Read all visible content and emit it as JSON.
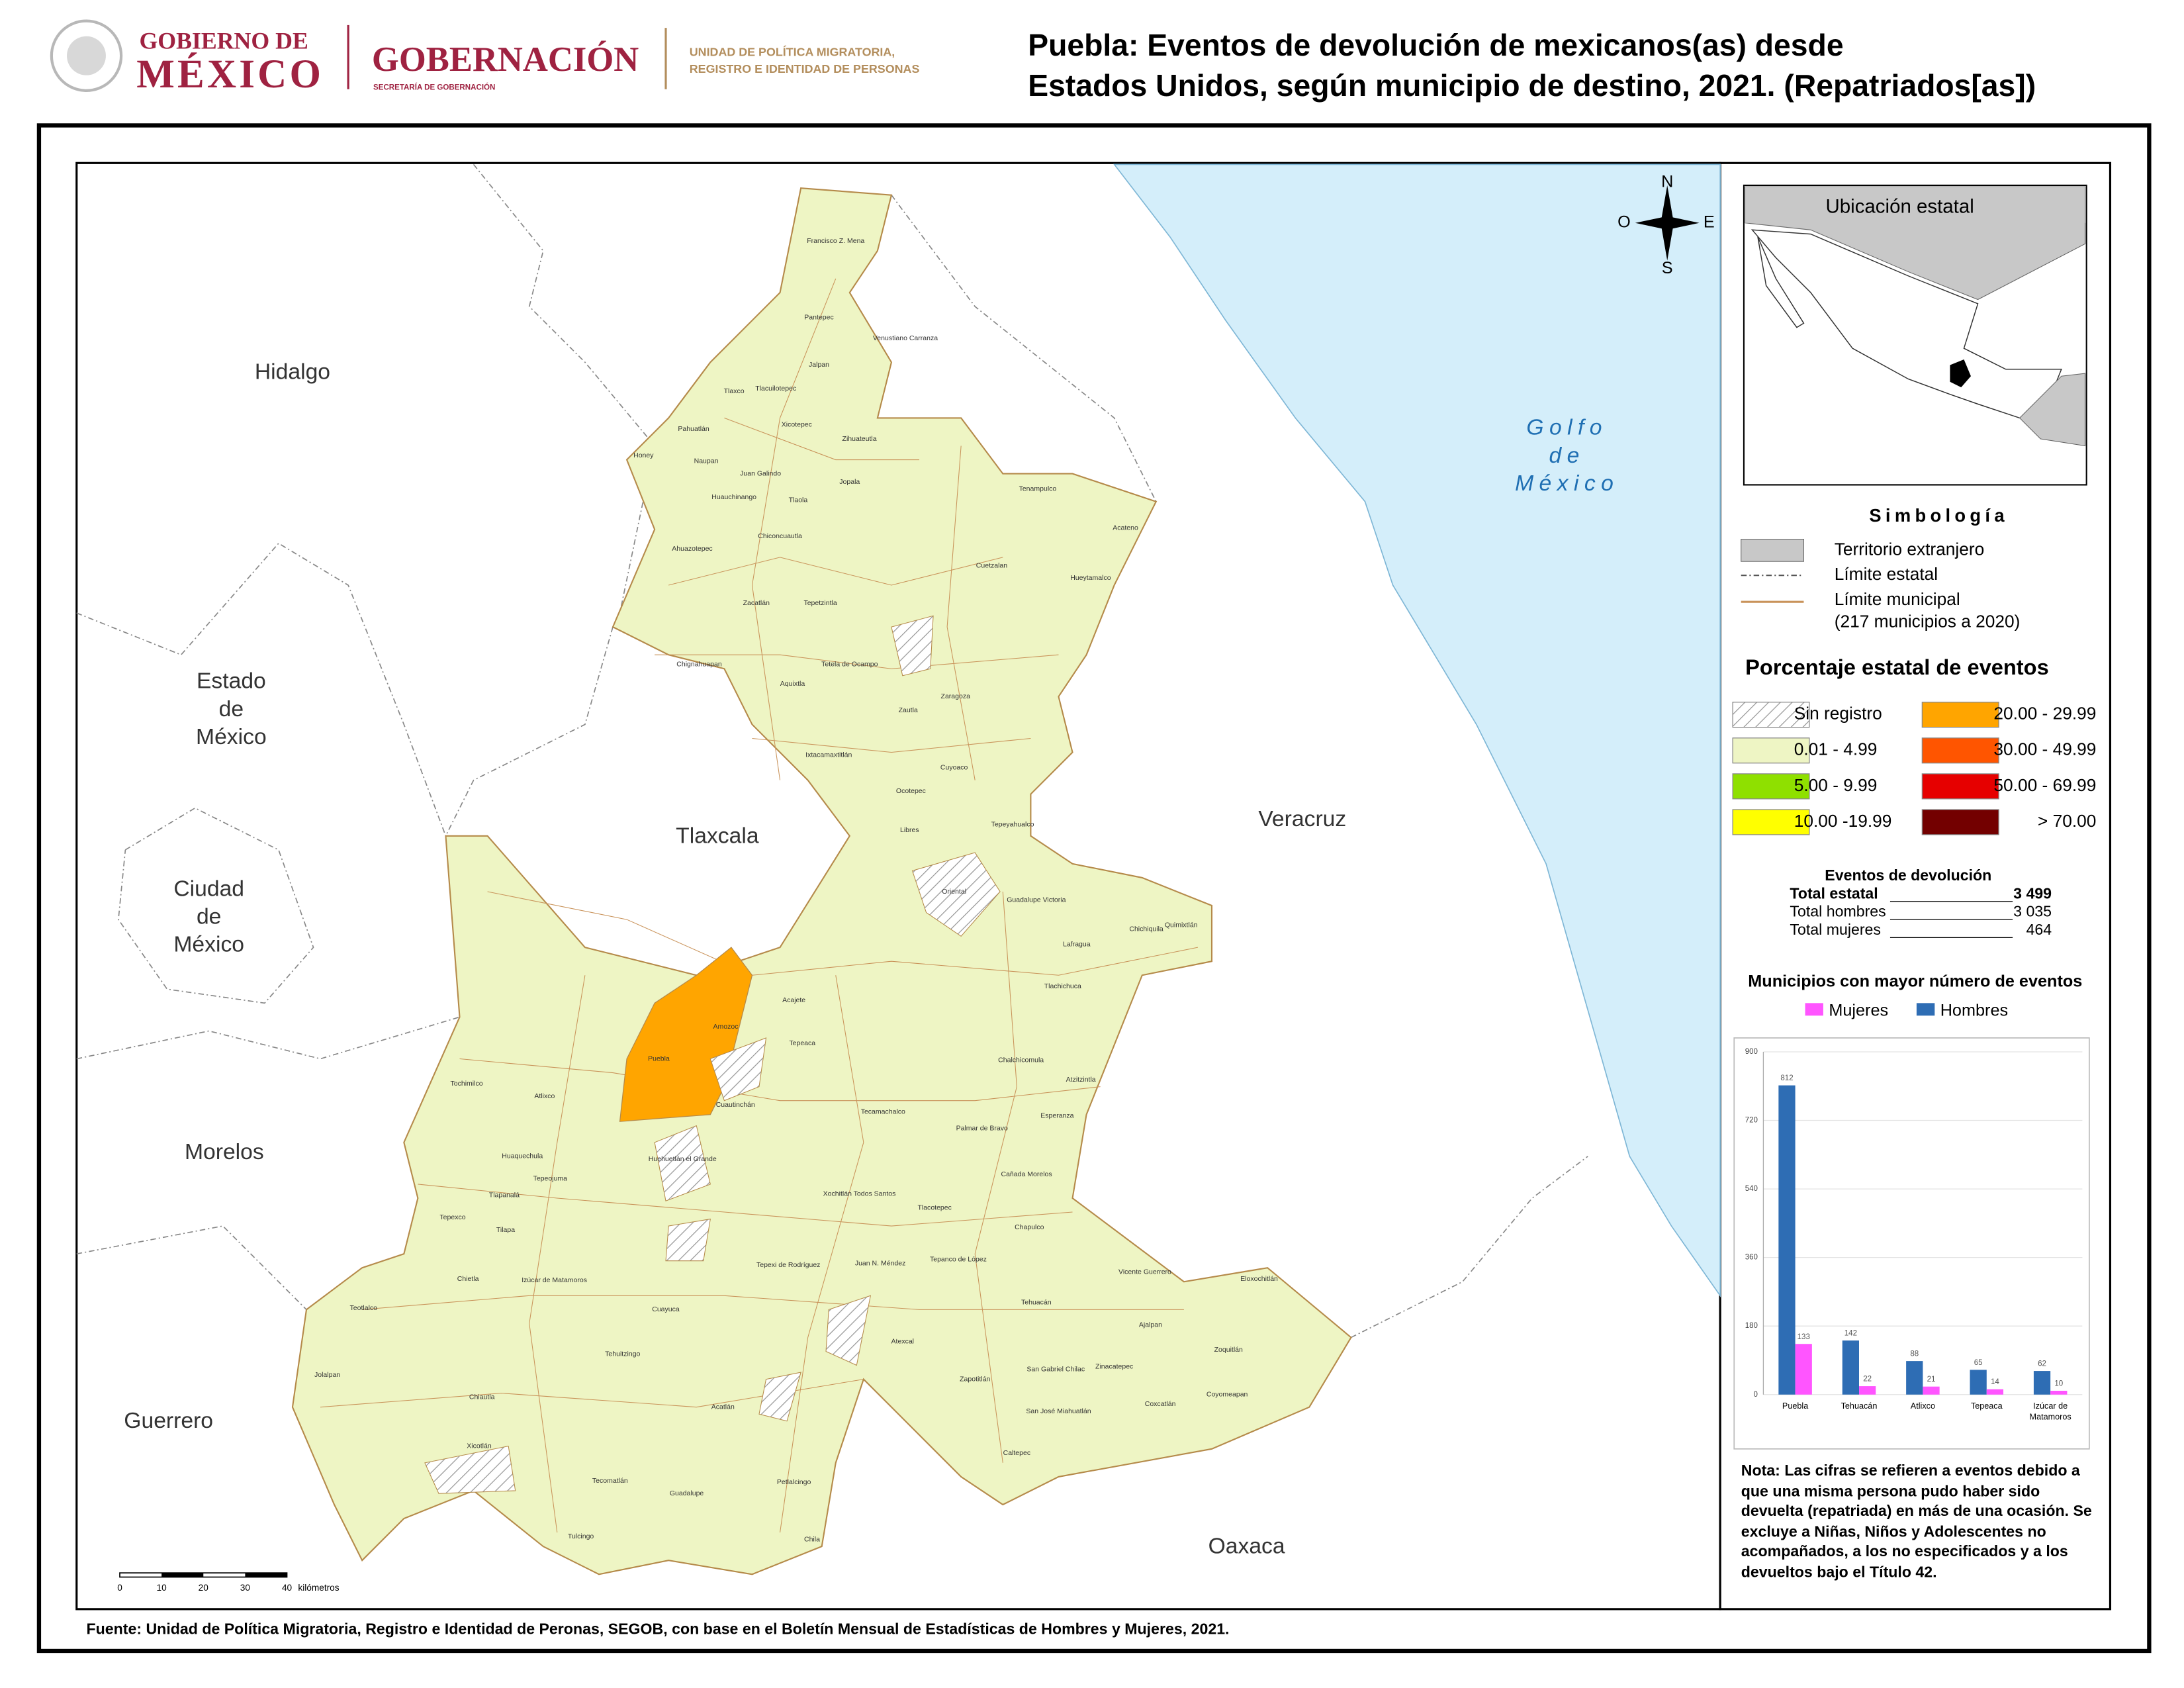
{
  "header": {
    "gov_line1": "GOBIERNO DE",
    "gov_line2": "MÉXICO",
    "ministry": "GOBERNACIÓN",
    "ministry_sub": "SECRETARÍA DE GOBERNACIÓN",
    "unit_line1": "UNIDAD DE POLÍTICA MIGRATORIA,",
    "unit_line2": "REGISTRO E IDENTIDAD DE PERSONAS",
    "title_line1": "Puebla: Eventos de devolución de mexicanos(as) desde",
    "title_line2": "Estados Unidos, según municipio de destino, 2021. (Repatriados[as])"
  },
  "map": {
    "neighbors": [
      "Hidalgo",
      "Estado de México",
      "Ciudad de México",
      "Morelos",
      "Guerrero",
      "Tlaxcala",
      "Veracruz",
      "Oaxaca"
    ],
    "sea": "Golfo de México",
    "compass": {
      "n": "N",
      "o": "O",
      "e": "E",
      "s": "S"
    },
    "scale": {
      "ticks": [
        0,
        10,
        20,
        30,
        40
      ],
      "unit": "kilómetros"
    },
    "municipalities": [
      "Francisco Z. Mena",
      "Pantepec",
      "Venustiano Carranza",
      "Jalpan",
      "Tlaxco",
      "Tlacuilotepec",
      "Xicotepec",
      "Pahuatlán",
      "Zihuateutla",
      "Honey",
      "Naupan",
      "Juan Galindo",
      "Jopala",
      "Huauchinango",
      "Tlaola",
      "Chiconcuautla",
      "Tenampulco",
      "Acateno",
      "Ahuazotepec",
      "Cuetzalan",
      "Hueytamalco",
      "Zacatlán",
      "Tepetzintla",
      "Chignahuapan",
      "Aquixtla",
      "Tetela de Ocampo",
      "Zaragoza",
      "Zautla",
      "Ixtacamaxtitlán",
      "Cuyoaco",
      "Ocotepec",
      "Libres",
      "Tepeyahualco",
      "Oriental",
      "Guadalupe Victoria",
      "Chichiquila",
      "Quimixtlán",
      "Lafragua",
      "Tlachichuca",
      "Chalchicomula",
      "Atzitzintla",
      "Esperanza",
      "Palmar de Bravo",
      "Tecamachalco",
      "Tepeaca",
      "Acajete",
      "Amozoc",
      "Puebla",
      "Cuautinchán",
      "Tochimilco",
      "Atlixco",
      "Huaquechula",
      "Tepeojuma",
      "Tlapanalá",
      "Tepexco",
      "Tilapa",
      "Chietla",
      "Izúcar de Matamoros",
      "Teotlalco",
      "Jolalpan",
      "Chiautla",
      "Tehuitzingo",
      "Cuayuca",
      "Tehuacán",
      "Ajalpan",
      "Zoquitlán",
      "Coyomeapan",
      "Eloxochitlán",
      "Vicente Guerrero",
      "Acatlán",
      "Tecomatlán",
      "Xicotlán",
      "Guadalupe",
      "Tulcingo",
      "Chila",
      "Petlalcingo",
      "Caltepec",
      "Zapotitlán",
      "Atexcal",
      "Tepanco de López",
      "Chapulco",
      "Cañada Morelos",
      "Tlacotepec",
      "Xochitlán Todos Santos",
      "Huehuetlán el Grande",
      "Tepexi de Rodríguez",
      "Juan N. Méndez",
      "Zinacatepec",
      "Coxcatlán",
      "San José Miahuatlán",
      "San Gabriel Chilac"
    ]
  },
  "inset": {
    "title": "Ubicación estatal"
  },
  "legend": {
    "title": "Simbología",
    "items": [
      {
        "label": "Territorio extranjero"
      },
      {
        "label": "Límite estatal"
      },
      {
        "label": "Límite municipal",
        "note": "(217 municipios a 2020)"
      }
    ],
    "classes_title": "Porcentaje estatal de eventos",
    "classes": [
      {
        "label": "Sin registro",
        "fill": "hatch"
      },
      {
        "label": "0.01  - 4.99",
        "fill": "#eef5c4"
      },
      {
        "label": "5.00  - 9.99",
        "fill": "#8fe000"
      },
      {
        "label": "10.00 -19.99",
        "fill": "#ffff00"
      },
      {
        "label": "20.00 - 29.99",
        "fill": "#ffa500"
      },
      {
        "label": "30.00 - 49.99",
        "fill": "#ff5500"
      },
      {
        "label": "50.00 - 69.99",
        "fill": "#e60000"
      },
      {
        "label": "> 70.00",
        "fill": "#730000"
      }
    ]
  },
  "totals": {
    "title": "Eventos de devolución",
    "rows": [
      {
        "label": "Total estatal",
        "value": "3 499"
      },
      {
        "label": "Total hombres",
        "value": "3 035"
      },
      {
        "label": "Total mujeres",
        "value": "464"
      }
    ]
  },
  "chart_data": {
    "type": "bar",
    "title": "Municipios con mayor número de eventos",
    "categories": [
      "Puebla",
      "Tehuacán",
      "Atlixco",
      "Tepeaca",
      "Izúcar de Matamoros"
    ],
    "series": [
      {
        "name": "Mujeres",
        "color": "#ff55ff",
        "values": [
          133,
          22,
          21,
          14,
          10
        ]
      },
      {
        "name": "Hombres",
        "color": "#2e6db4",
        "values": [
          812,
          142,
          88,
          65,
          62
        ]
      }
    ],
    "ylim": [
      0,
      900
    ],
    "yticks": [
      0,
      180,
      360,
      540,
      720,
      900
    ],
    "grid": true
  },
  "note": "Nota: Las cifras se refieren a eventos debido a que una misma persona pudo haber sido devuelta (repatriada) en más de una ocasión. Se excluye a Niñas, Niños y Adolescentes no acompañados, a los no especificados y a los devueltos bajo el Título 42.",
  "source": "Fuente: Unidad de Política Migratoria, Registro e Identidad de Peronas, SEGOB, con base en el Boletín Mensual de Estadísticas de Hombres y Mujeres, 2021."
}
